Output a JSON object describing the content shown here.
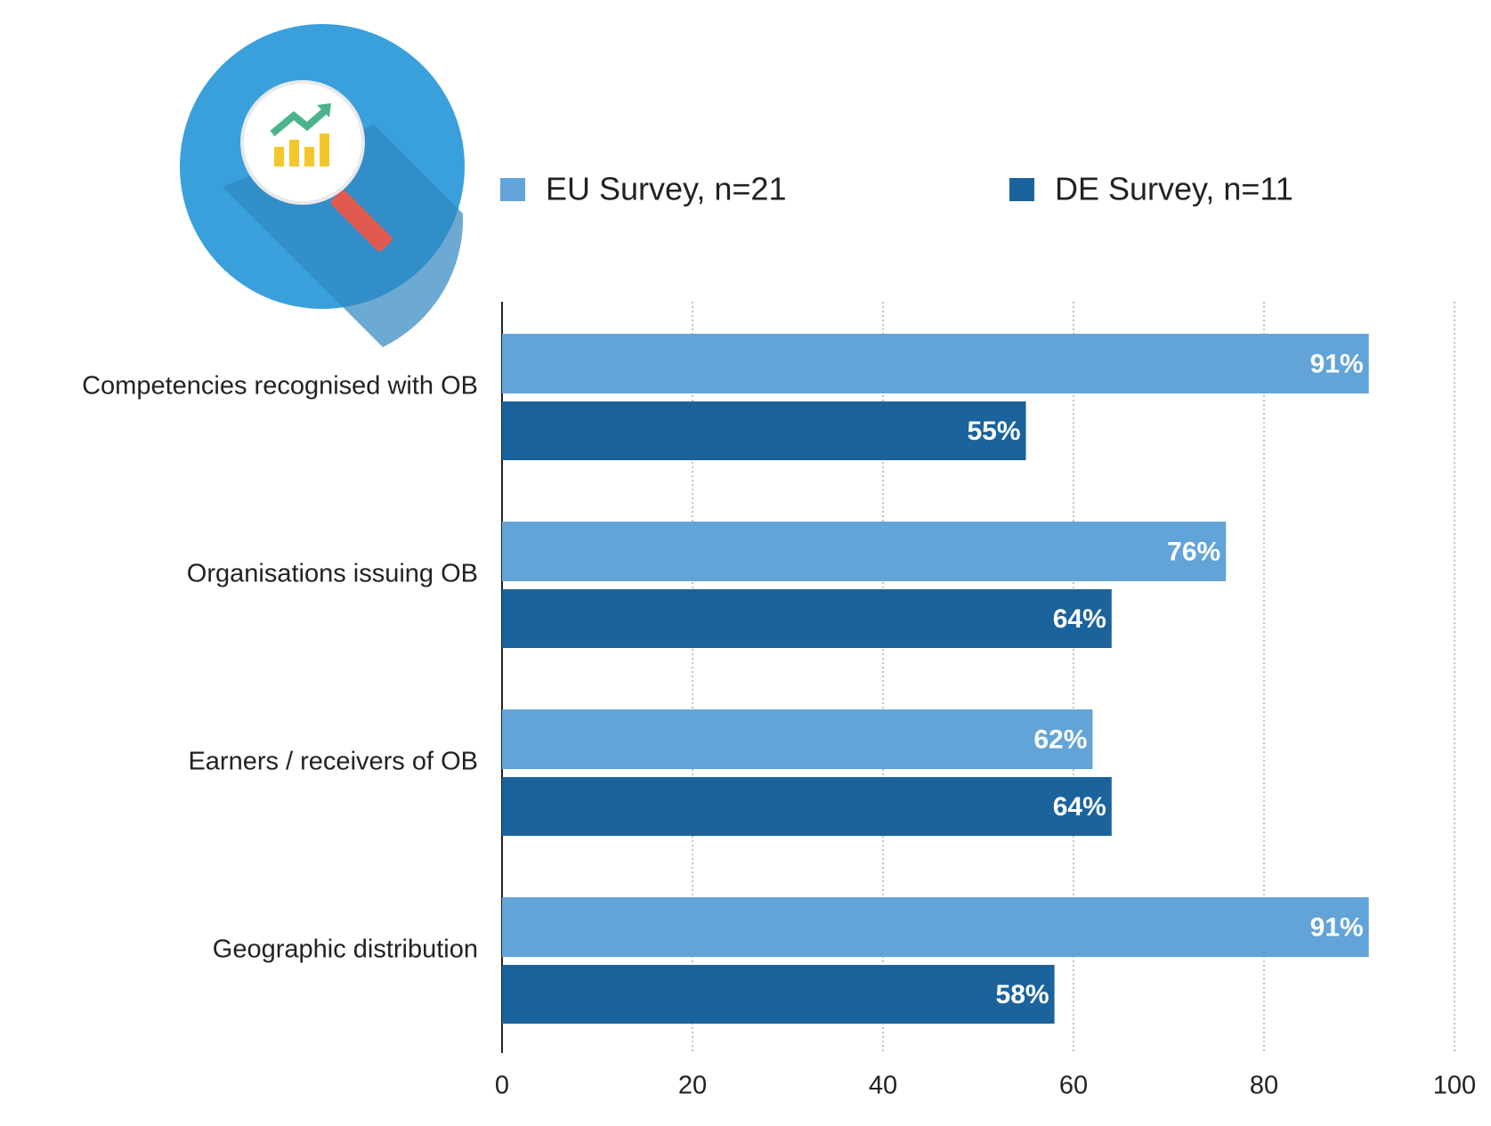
{
  "chart_data": {
    "type": "bar",
    "orientation": "horizontal",
    "categories": [
      "Competencies recognised with OB",
      "Organisations issuing OB",
      "Earners / receivers of OB",
      "Geographic distribution"
    ],
    "series": [
      {
        "name": "EU Survey, n=21",
        "color": "#62a3d8",
        "values": [
          91,
          76,
          62,
          91
        ],
        "value_labels": [
          "91%",
          "76%",
          "62%",
          "91%"
        ]
      },
      {
        "name": "DE Survey, n=11",
        "color": "#1a639d",
        "values": [
          55,
          64,
          64,
          58
        ],
        "value_labels": [
          "55%",
          "64%",
          "64%",
          "58%"
        ]
      }
    ],
    "xlim": [
      0,
      100
    ],
    "xticks": [
      0,
      20,
      40,
      60,
      80,
      100
    ],
    "grid": true,
    "legend": "top"
  }
}
